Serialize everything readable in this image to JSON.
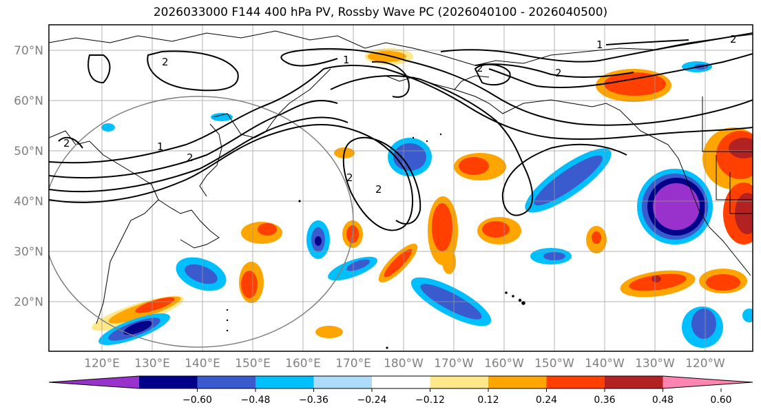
{
  "title": "2026033000 F144 400 hPa PV, Rossby Wave PC (2026040100 - 2026040500)",
  "lat_ticks": [
    "70°N",
    "60°N",
    "50°N",
    "40°N",
    "30°N",
    "20°N"
  ],
  "lon_ticks": [
    "120°E",
    "130°E",
    "140°E",
    "150°E",
    "160°E",
    "170°E",
    "180°W",
    "170°W",
    "160°W",
    "150°W",
    "140°W",
    "130°W",
    "120°W"
  ],
  "contour_labels": [
    "2",
    "2",
    "2",
    "2",
    "1",
    "1",
    "1",
    "2",
    "2",
    "2",
    "2"
  ],
  "colorbar": {
    "colors": [
      "#9932cc",
      "#00008b",
      "#3a5bcd",
      "#00bfff",
      "#addbfa",
      "#ffffff",
      "#ffe88a",
      "#ffa500",
      "#ff4000",
      "#b22222",
      "#ff85b0"
    ],
    "labels": [
      "−0.60",
      "−0.48",
      "−0.36",
      "−0.24",
      "−0.12",
      "0.12",
      "0.24",
      "0.36",
      "0.48",
      "0.60"
    ]
  }
}
